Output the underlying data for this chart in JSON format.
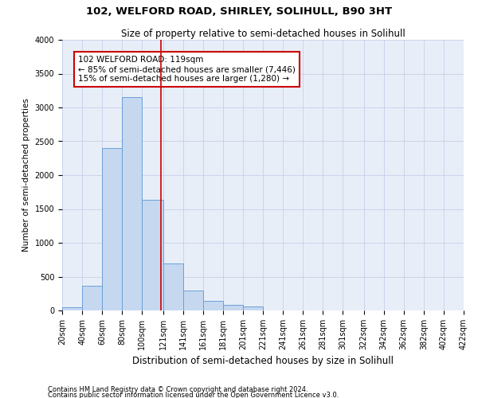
{
  "title1": "102, WELFORD ROAD, SHIRLEY, SOLIHULL, B90 3HT",
  "title2": "Size of property relative to semi-detached houses in Solihull",
  "xlabel": "Distribution of semi-detached houses by size in Solihull",
  "ylabel": "Number of semi-detached properties",
  "footer1": "Contains HM Land Registry data © Crown copyright and database right 2024.",
  "footer2": "Contains public sector information licensed under the Open Government Licence v3.0.",
  "property_line": 119,
  "annotation_title": "102 WELFORD ROAD: 119sqm",
  "annotation_line1": "← 85% of semi-detached houses are smaller (7,446)",
  "annotation_line2": "15% of semi-detached houses are larger (1,280) →",
  "bin_edges": [
    20,
    40,
    60,
    80,
    100,
    121,
    141,
    161,
    181,
    201,
    221,
    241,
    261,
    281,
    301,
    322,
    342,
    362,
    382,
    402,
    422
  ],
  "bar_heights": [
    50,
    370,
    2400,
    3150,
    1630,
    700,
    290,
    140,
    80,
    60,
    0,
    0,
    0,
    0,
    0,
    0,
    0,
    0,
    0,
    0
  ],
  "bar_color": "#c5d8f0",
  "bar_edge_color": "#6a9fd8",
  "grid_color": "#c8cfe8",
  "bg_color": "#e8eef8",
  "vline_color": "#cc0000",
  "annotation_box_color": "#cc0000",
  "ylim": [
    0,
    4000
  ],
  "yticks": [
    0,
    500,
    1000,
    1500,
    2000,
    2500,
    3000,
    3500,
    4000
  ],
  "title1_fontsize": 9.5,
  "title2_fontsize": 8.5,
  "xlabel_fontsize": 8.5,
  "ylabel_fontsize": 7.5,
  "tick_fontsize": 7,
  "footer_fontsize": 6,
  "annot_fontsize": 7.5
}
